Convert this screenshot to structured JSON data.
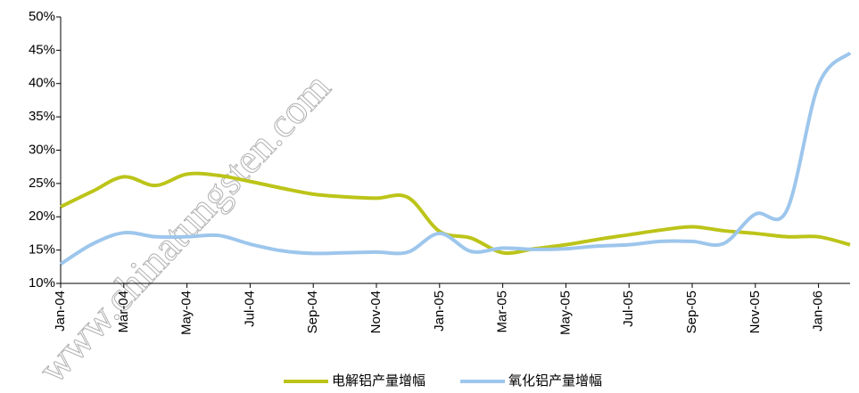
{
  "chart_data": {
    "type": "line",
    "categories": [
      "Jan-04",
      null,
      "Mar-04",
      null,
      "May-04",
      null,
      "Jul-04",
      null,
      "Sep-04",
      null,
      "Nov-04",
      null,
      "Jan-05",
      null,
      "Mar-05",
      null,
      "May-05",
      null,
      "Jul-05",
      null,
      "Sep-05",
      null,
      "Nov-05",
      null,
      "Jan-06",
      null
    ],
    "series": [
      {
        "name": "电解铝产量增幅",
        "color": "#bcc419",
        "values": [
          21.5,
          23.8,
          26.0,
          24.7,
          26.4,
          26.2,
          25.3,
          24.3,
          23.4,
          23.0,
          22.8,
          22.9,
          17.8,
          16.8,
          14.6,
          15.2,
          15.8,
          16.6,
          17.3,
          18.0,
          18.5,
          17.9,
          17.5,
          17.0,
          17.0,
          15.8
        ]
      },
      {
        "name": "氧化铝产量增幅",
        "color": "#9dc6ec",
        "values": [
          12.9,
          15.9,
          17.6,
          17.0,
          17.0,
          17.2,
          15.9,
          14.9,
          14.5,
          14.6,
          14.7,
          14.7,
          17.5,
          14.8,
          15.3,
          15.1,
          15.2,
          15.6,
          15.8,
          16.3,
          16.3,
          16.0,
          20.4,
          21.0,
          39.8,
          44.6
        ]
      }
    ],
    "ylim": [
      10,
      50
    ],
    "yticks": [
      {
        "value": 10,
        "label": "10%"
      },
      {
        "value": 15,
        "label": "15%"
      },
      {
        "value": 20,
        "label": "20%"
      },
      {
        "value": 25,
        "label": "25%"
      },
      {
        "value": 30,
        "label": "30%"
      },
      {
        "value": 35,
        "label": "35%"
      },
      {
        "value": 40,
        "label": "40%"
      },
      {
        "value": 45,
        "label": "45%"
      },
      {
        "value": 50,
        "label": "50%"
      }
    ],
    "legend": "bottom",
    "watermark": "www.chinatungsten.com"
  }
}
